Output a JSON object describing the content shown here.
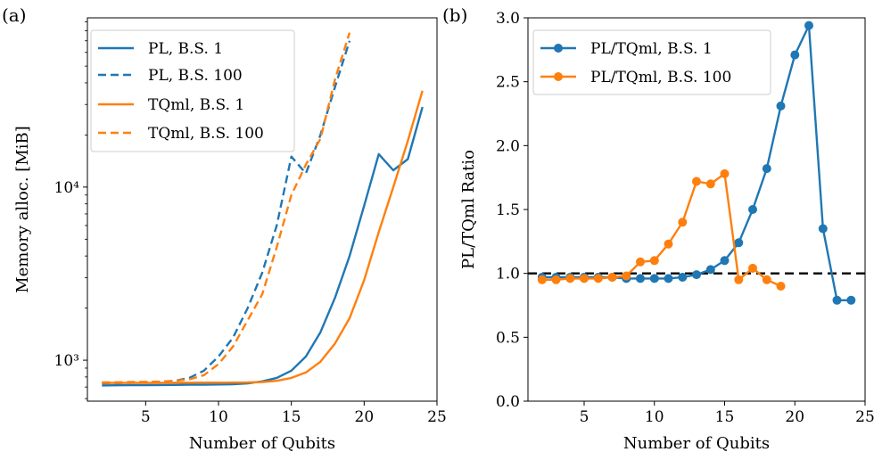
{
  "chart_data": [
    {
      "panel_label": "(a)",
      "type": "line",
      "yscale": "log",
      "xlabel": "Number of Qubits",
      "ylabel": "Memory alloc. [MiB]",
      "xlim": [
        1.0,
        25.0
      ],
      "ylim": [
        580,
        95000
      ],
      "xticks": [
        5,
        10,
        15,
        20,
        25
      ],
      "xtick_labels": [
        "5",
        "10",
        "15",
        "20",
        "25"
      ],
      "yticks": [
        1000,
        10000
      ],
      "ytick_labels": [
        "10³",
        "10⁴"
      ],
      "legend_position": "top-left",
      "series": [
        {
          "name": "PL, B.S. 1",
          "color": "#1f77b4",
          "dash": "solid",
          "x": [
            2,
            3,
            4,
            5,
            6,
            7,
            8,
            9,
            10,
            11,
            12,
            13,
            14,
            15,
            16,
            17,
            18,
            19,
            20,
            21,
            22,
            23,
            24
          ],
          "y": [
            715,
            716,
            717,
            718,
            719,
            720,
            721,
            722,
            724,
            726,
            735,
            755,
            790,
            870,
            1050,
            1450,
            2300,
            4000,
            7800,
            15500,
            12500,
            14500,
            29000
          ]
        },
        {
          "name": "PL, B.S. 100",
          "color": "#1f77b4",
          "dash": "dashed",
          "x": [
            2,
            3,
            4,
            5,
            6,
            7,
            8,
            9,
            10,
            11,
            12,
            13,
            14,
            15,
            16,
            17,
            18,
            19
          ],
          "y": [
            735,
            737,
            740,
            745,
            750,
            760,
            790,
            870,
            1050,
            1350,
            2000,
            3200,
            6000,
            15000,
            12000,
            20000,
            38000,
            70000
          ]
        },
        {
          "name": "TQml, B.S. 1",
          "color": "#ff7f0e",
          "dash": "solid",
          "x": [
            2,
            3,
            4,
            5,
            6,
            7,
            8,
            9,
            10,
            11,
            12,
            13,
            14,
            15,
            16,
            17,
            18,
            19,
            20,
            21,
            22,
            23,
            24
          ],
          "y": [
            740,
            740,
            740,
            740,
            740,
            741,
            741,
            742,
            742,
            743,
            744,
            748,
            760,
            790,
            850,
            980,
            1250,
            1750,
            2900,
            5500,
            10000,
            18500,
            36000
          ]
        },
        {
          "name": "TQml, B.S. 100",
          "color": "#ff7f0e",
          "dash": "dashed",
          "x": [
            2,
            3,
            4,
            5,
            6,
            7,
            8,
            9,
            10,
            11,
            12,
            13,
            14,
            15,
            16,
            17,
            18,
            19
          ],
          "y": [
            745,
            746,
            748,
            750,
            752,
            760,
            775,
            820,
            950,
            1200,
            1700,
            2400,
            4500,
            9000,
            13500,
            19000,
            42000,
            78000
          ]
        }
      ]
    },
    {
      "panel_label": "(b)",
      "type": "line",
      "yscale": "linear",
      "xlabel": "Number of Qubits",
      "ylabel": "PL/TQml Ratio",
      "xlim": [
        1.0,
        25.0
      ],
      "ylim": [
        0.0,
        3.0
      ],
      "xticks": [
        5,
        10,
        15,
        20,
        25
      ],
      "xtick_labels": [
        "5",
        "10",
        "15",
        "20",
        "25"
      ],
      "yticks": [
        0.0,
        0.5,
        1.0,
        1.5,
        2.0,
        2.5,
        3.0
      ],
      "ytick_labels": [
        "0.0",
        "0.5",
        "1.0",
        "1.5",
        "2.0",
        "2.5",
        "3.0"
      ],
      "reference_line": {
        "y": 1.0,
        "style": "dashed",
        "color": "#000000"
      },
      "legend_position": "top-left",
      "series": [
        {
          "name": "PL/TQml, B.S. 1",
          "color": "#1f77b4",
          "marker": "circle",
          "x": [
            2,
            3,
            4,
            5,
            6,
            7,
            8,
            9,
            10,
            11,
            12,
            13,
            14,
            15,
            16,
            17,
            18,
            19,
            20,
            21,
            22,
            23,
            24
          ],
          "y": [
            0.97,
            0.97,
            0.97,
            0.97,
            0.97,
            0.97,
            0.96,
            0.96,
            0.96,
            0.96,
            0.97,
            0.99,
            1.03,
            1.1,
            1.24,
            1.5,
            1.82,
            2.31,
            2.71,
            2.94,
            1.35,
            0.79,
            0.79
          ]
        },
        {
          "name": "PL/TQml, B.S. 100",
          "color": "#ff7f0e",
          "marker": "circle",
          "x": [
            2,
            3,
            4,
            5,
            6,
            7,
            8,
            9,
            10,
            11,
            12,
            13,
            14,
            15,
            16,
            17,
            18,
            19
          ],
          "y": [
            0.95,
            0.95,
            0.96,
            0.96,
            0.96,
            0.97,
            0.98,
            1.09,
            1.1,
            1.23,
            1.4,
            1.72,
            1.7,
            1.78,
            0.95,
            1.04,
            0.95,
            0.9
          ]
        }
      ]
    }
  ]
}
